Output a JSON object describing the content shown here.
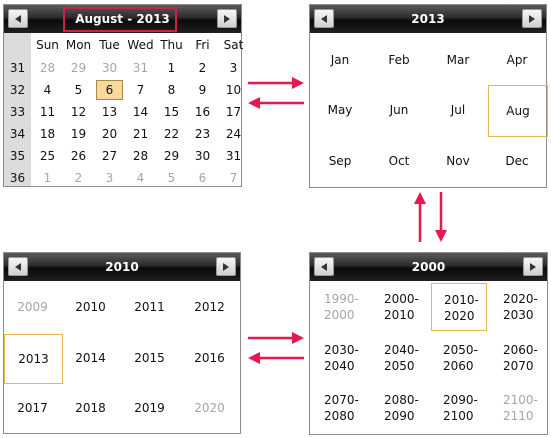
{
  "top_left": {
    "title": "August - 2013",
    "weekdays": [
      "Sun",
      "Mon",
      "Tue",
      "Wed",
      "Thu",
      "Fri",
      "Sat"
    ],
    "weeks": [
      {
        "num": "31",
        "days": [
          {
            "d": "28",
            "m": true
          },
          {
            "d": "29",
            "m": true
          },
          {
            "d": "30",
            "m": true
          },
          {
            "d": "31",
            "m": true
          },
          {
            "d": "1"
          },
          {
            "d": "2"
          },
          {
            "d": "3"
          }
        ]
      },
      {
        "num": "32",
        "days": [
          {
            "d": "4"
          },
          {
            "d": "5"
          },
          {
            "d": "6",
            "today": true
          },
          {
            "d": "7"
          },
          {
            "d": "8"
          },
          {
            "d": "9"
          },
          {
            "d": "10"
          }
        ]
      },
      {
        "num": "33",
        "days": [
          {
            "d": "11"
          },
          {
            "d": "12"
          },
          {
            "d": "13"
          },
          {
            "d": "14"
          },
          {
            "d": "15"
          },
          {
            "d": "16"
          },
          {
            "d": "17"
          }
        ]
      },
      {
        "num": "34",
        "days": [
          {
            "d": "18"
          },
          {
            "d": "19"
          },
          {
            "d": "20"
          },
          {
            "d": "21"
          },
          {
            "d": "22"
          },
          {
            "d": "23"
          },
          {
            "d": "24"
          }
        ]
      },
      {
        "num": "35",
        "days": [
          {
            "d": "25"
          },
          {
            "d": "26"
          },
          {
            "d": "27"
          },
          {
            "d": "28"
          },
          {
            "d": "29"
          },
          {
            "d": "30"
          },
          {
            "d": "31"
          }
        ]
      },
      {
        "num": "36",
        "days": [
          {
            "d": "1",
            "m": true
          },
          {
            "d": "2",
            "m": true
          },
          {
            "d": "3",
            "m": true
          },
          {
            "d": "4",
            "m": true
          },
          {
            "d": "5",
            "m": true
          },
          {
            "d": "6",
            "m": true
          },
          {
            "d": "7",
            "m": true
          }
        ]
      }
    ]
  },
  "top_right": {
    "title": "2013",
    "months": [
      "Jan",
      "Feb",
      "Mar",
      "Apr",
      "May",
      "Jun",
      "Jul",
      "Aug",
      "Sep",
      "Oct",
      "Nov",
      "Dec"
    ],
    "selected": 7
  },
  "bottom_left": {
    "title": "2010",
    "years": [
      {
        "t": "2009",
        "m": true
      },
      {
        "t": "2010"
      },
      {
        "t": "2011"
      },
      {
        "t": "2012"
      },
      {
        "t": "2013",
        "sel": true
      },
      {
        "t": "2014"
      },
      {
        "t": "2015"
      },
      {
        "t": "2016"
      },
      {
        "t": "2017"
      },
      {
        "t": "2018"
      },
      {
        "t": "2019"
      },
      {
        "t": "2020",
        "m": true
      }
    ]
  },
  "bottom_right": {
    "title": "2000",
    "decades": [
      {
        "a": "1990-",
        "b": "2000",
        "m": true
      },
      {
        "a": "2000-",
        "b": "2010"
      },
      {
        "a": "2010-",
        "b": "2020",
        "sel": true
      },
      {
        "a": "2020-",
        "b": "2030"
      },
      {
        "a": "2030-",
        "b": "2040"
      },
      {
        "a": "2040-",
        "b": "2050"
      },
      {
        "a": "2050-",
        "b": "2060"
      },
      {
        "a": "2060-",
        "b": "2070"
      },
      {
        "a": "2070-",
        "b": "2080"
      },
      {
        "a": "2080-",
        "b": "2090"
      },
      {
        "a": "2090-",
        "b": "2100"
      },
      {
        "a": "2100-",
        "b": "2110",
        "m": true
      }
    ]
  },
  "colors": {
    "arrow": "#e8174e",
    "highlight_box": "#d0213e",
    "selection": "#e8b84a",
    "today_fill": "#fcd79a"
  }
}
